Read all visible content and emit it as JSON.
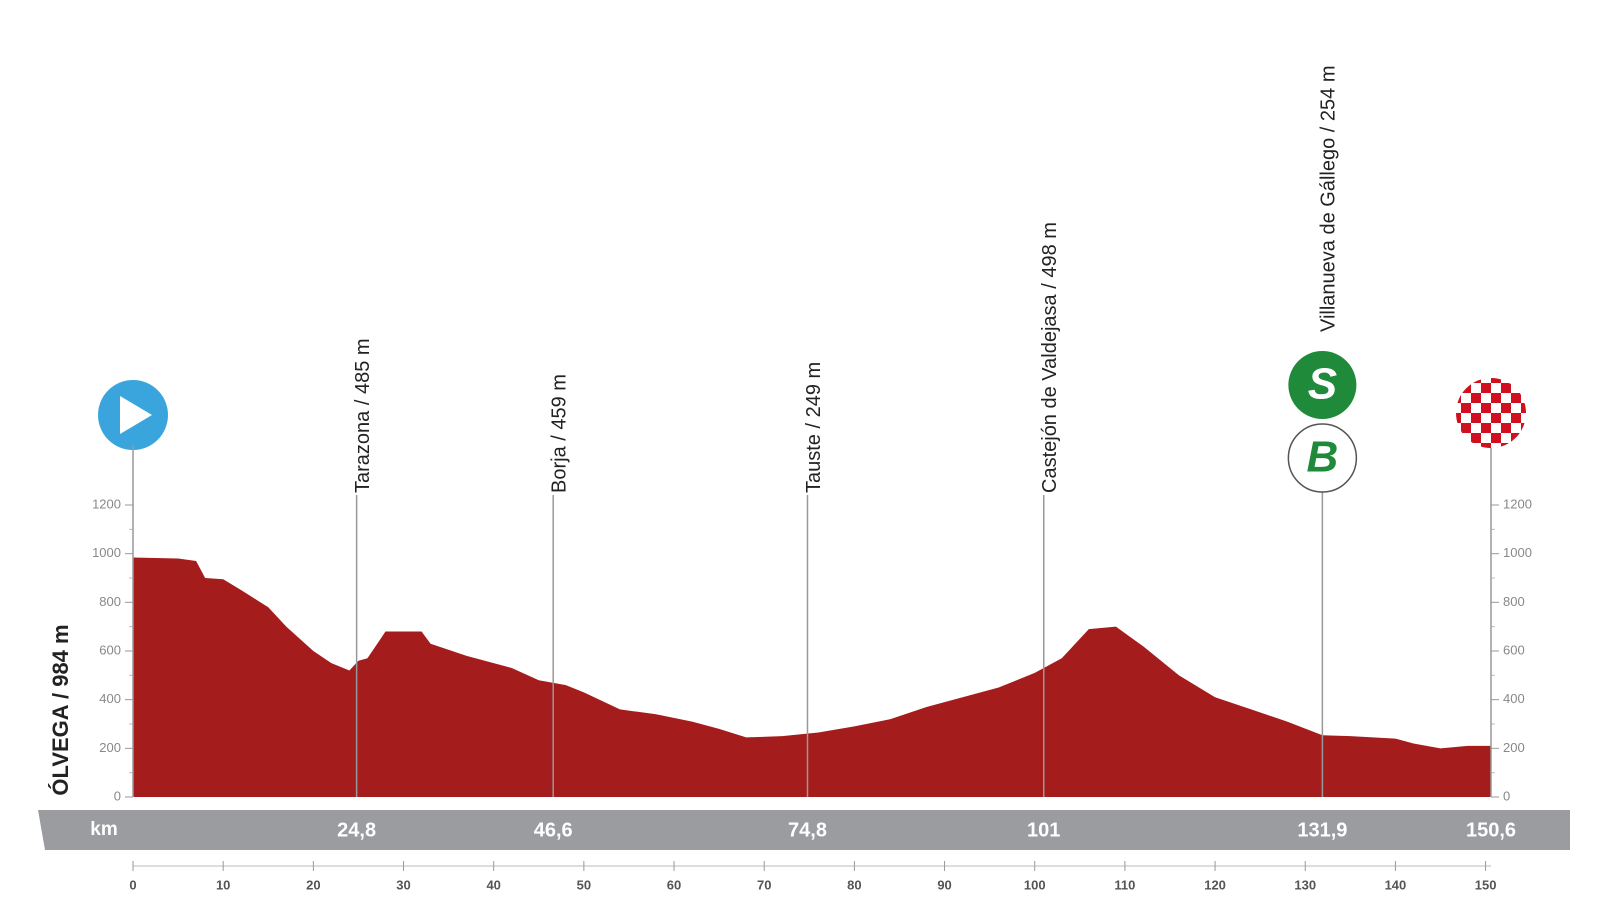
{
  "chart_data": {
    "type": "area",
    "start_label": "ÓLVEGA / 984 m",
    "x_unit_label": "km",
    "x": [
      0,
      5,
      7,
      8,
      10,
      12,
      15,
      17,
      20,
      22,
      24,
      25,
      26,
      28,
      32,
      33,
      37,
      42,
      45,
      48,
      50,
      54,
      58,
      62,
      65,
      68,
      72,
      76,
      80,
      84,
      88,
      92,
      96,
      100,
      103,
      106,
      109,
      112,
      116,
      120,
      124,
      128,
      131.9,
      135,
      140,
      142,
      145,
      148,
      150.6
    ],
    "values": [
      984,
      980,
      970,
      900,
      895,
      850,
      780,
      700,
      600,
      550,
      520,
      560,
      570,
      680,
      680,
      630,
      580,
      530,
      480,
      460,
      430,
      360,
      340,
      310,
      280,
      245,
      250,
      265,
      290,
      320,
      370,
      410,
      450,
      510,
      570,
      690,
      700,
      620,
      500,
      410,
      360,
      310,
      254,
      250,
      240,
      220,
      200,
      210,
      210
    ],
    "color": "#a51c1c",
    "xlim": [
      0,
      150.6
    ],
    "ylim": [
      0,
      1200
    ],
    "xticks": [
      0,
      10,
      20,
      30,
      40,
      50,
      60,
      70,
      80,
      90,
      100,
      110,
      120,
      130,
      140,
      150
    ],
    "yticks": [
      0,
      200,
      400,
      600,
      800,
      1000,
      1200
    ],
    "markers": [
      {
        "x": {
          "value": 0,
          "label": "0"
        }
      },
      {
        "name": "Tarazona / 485 m",
        "x": {
          "value": 24.8,
          "label": "24,8"
        }
      },
      {
        "name": "Borja / 459 m",
        "x": {
          "value": 46.6,
          "label": "46,6"
        }
      },
      {
        "name": "Tauste / 249 m",
        "x": {
          "value": 74.8,
          "label": "74,8"
        }
      },
      {
        "name": "Castejón de Valdejasa / 498 m",
        "x": {
          "value": 101,
          "label": "101"
        }
      },
      {
        "name": "Villanueva de Gállego / 254 m",
        "x": {
          "value": 131.9,
          "label": "131,9"
        },
        "icons": [
          "S",
          "B"
        ]
      },
      {
        "x": {
          "value": 150.6,
          "label": "150,6"
        }
      }
    ]
  }
}
